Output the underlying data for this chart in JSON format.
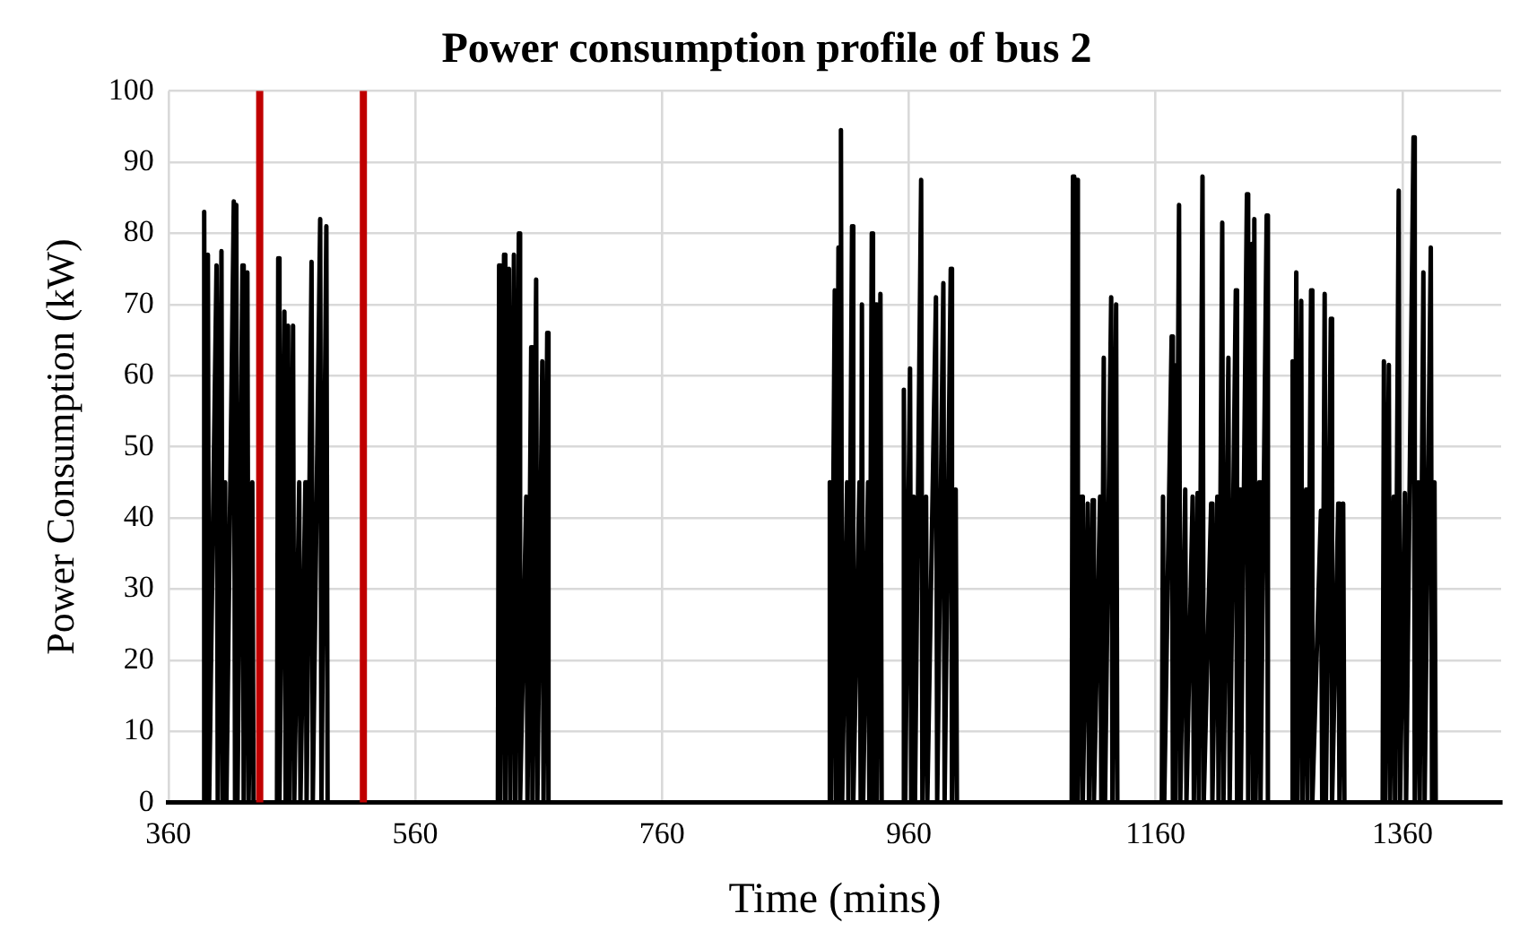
{
  "chart_data": {
    "type": "line",
    "title": "Power consumption profile of bus 2",
    "xlabel": "Time (mins)",
    "ylabel": "Power Consumption (kW)",
    "xlim": [
      360,
      1440
    ],
    "xticks": [
      360,
      560,
      760,
      960,
      1160,
      1360
    ],
    "ylim": [
      0,
      100
    ],
    "yticks": [
      0,
      10,
      20,
      30,
      40,
      50,
      60,
      70,
      80,
      90,
      100
    ],
    "grid": true,
    "marker": "none",
    "line_style": "solid",
    "ref_lines": [
      {
        "axis": "x",
        "value": 434,
        "color": "#c00000"
      },
      {
        "axis": "x",
        "value": 518,
        "color": "#c00000"
      }
    ],
    "series": [
      {
        "color": "#000000",
        "x": [
          360,
          388,
          389,
          390,
          392,
          393,
          399,
          400,
          403,
          404,
          406,
          407,
          413,
          414,
          415,
          416,
          420,
          421,
          424,
          425,
          428,
          429,
          448,
          449,
          450,
          454,
          455,
          457,
          458,
          461,
          462,
          466,
          467,
          471,
          472,
          476,
          477,
          483,
          484,
          488,
          489,
          627,
          628,
          629,
          632,
          633,
          636,
          637,
          640,
          641,
          644,
          645,
          650,
          651,
          654,
          655,
          658,
          659,
          663,
          664,
          667,
          668,
          895,
          896,
          897,
          900,
          901,
          903,
          904,
          905,
          906,
          910,
          911,
          914,
          915,
          920,
          921,
          922,
          923,
          927,
          928,
          930,
          931,
          933,
          934,
          937,
          938,
          955,
          956,
          957,
          961,
          962,
          964,
          965,
          970,
          971,
          974,
          975,
          982,
          983,
          988,
          989,
          994,
          995,
          998,
          999,
          1092,
          1093,
          1094,
          1096,
          1097,
          1100,
          1101,
          1105,
          1106,
          1109,
          1110,
          1115,
          1116,
          1118,
          1119,
          1124,
          1125,
          1128,
          1129,
          1165,
          1166,
          1167,
          1173,
          1174,
          1175,
          1176,
          1179,
          1180,
          1184,
          1185,
          1190,
          1191,
          1194,
          1195,
          1198,
          1199,
          1205,
          1206,
          1210,
          1211,
          1214,
          1215,
          1219,
          1220,
          1225,
          1226,
          1228,
          1229,
          1234,
          1235,
          1238,
          1239,
          1240,
          1241,
          1244,
          1245,
          1250,
          1251,
          1270,
          1271,
          1272,
          1274,
          1275,
          1278,
          1279,
          1282,
          1283,
          1286,
          1287,
          1294,
          1295,
          1297,
          1298,
          1302,
          1303,
          1308,
          1309,
          1312,
          1313,
          1344,
          1345,
          1346,
          1349,
          1350,
          1353,
          1354,
          1357,
          1358,
          1362,
          1363,
          1369,
          1370,
          1373,
          1374,
          1377,
          1378,
          1383,
          1384,
          1386,
          1387,
          1440
        ],
        "values": [
          0,
          0,
          83,
          0,
          77,
          0,
          75.5,
          0,
          77.5,
          0,
          45,
          0,
          84.5,
          0,
          84,
          0,
          75.5,
          0,
          74.5,
          0,
          45,
          0,
          0,
          76.5,
          0,
          69,
          0,
          67,
          0,
          67,
          0,
          45,
          0,
          45,
          0,
          76,
          0,
          82,
          0,
          81,
          0,
          0,
          75.5,
          0,
          77,
          0,
          75,
          0,
          77,
          0,
          80,
          0,
          43,
          0,
          64,
          0,
          73.5,
          0,
          62,
          0,
          66,
          0,
          0,
          45,
          0,
          72,
          0,
          78,
          0,
          94.5,
          0,
          45,
          0,
          81,
          0,
          45,
          0,
          70,
          0,
          45,
          0,
          80,
          0,
          70,
          0,
          71.5,
          0,
          0,
          58,
          0,
          61,
          0,
          43,
          0,
          87.5,
          0,
          43,
          0,
          71,
          0,
          73,
          0,
          75,
          0,
          44,
          0,
          0,
          88,
          0,
          87.5,
          0,
          43,
          0,
          42,
          0,
          42.5,
          0,
          43,
          0,
          62.5,
          0,
          71,
          0,
          70,
          0,
          0,
          43,
          0,
          65.5,
          0,
          61.5,
          0,
          84,
          0,
          44,
          0,
          43,
          0,
          43.5,
          0,
          88,
          0,
          42,
          0,
          43,
          0,
          81.5,
          0,
          62.5,
          0,
          72,
          0,
          44,
          0,
          85.5,
          0,
          78.5,
          0,
          82,
          0,
          45,
          0,
          82.5,
          0,
          0,
          62,
          0,
          74.5,
          0,
          70.5,
          0,
          44,
          0,
          72,
          0,
          41,
          0,
          71.5,
          0,
          68,
          0,
          42,
          0,
          42,
          0,
          0,
          62,
          0,
          61.5,
          0,
          43,
          0,
          86,
          0,
          43.5,
          0,
          93.5,
          0,
          45,
          0,
          74.5,
          0,
          78,
          0,
          45,
          0,
          0
        ]
      }
    ]
  }
}
